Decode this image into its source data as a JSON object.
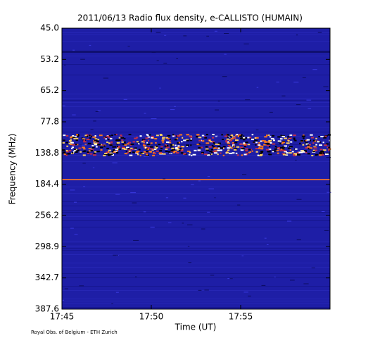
{
  "chart_data": {
    "type": "spectrogram",
    "title": "2011/06/13  Radio flux density, e-CALLISTO (HUMAIN)",
    "xlabel": "Time (UT)",
    "ylabel": "Frequency (MHz)",
    "footer": "Royal Obs. of Belgium - ETH Zurich",
    "xlim": [
      "17:45",
      "18:00"
    ],
    "xticks": [
      "17:45",
      "17:50",
      "17:55"
    ],
    "yticks": [
      {
        "value": 45,
        "label": "45.0"
      },
      53.2,
      65.2,
      77.8,
      138.8,
      184.4,
      256.2,
      298.9,
      342.7,
      387.6
    ]
  }
}
